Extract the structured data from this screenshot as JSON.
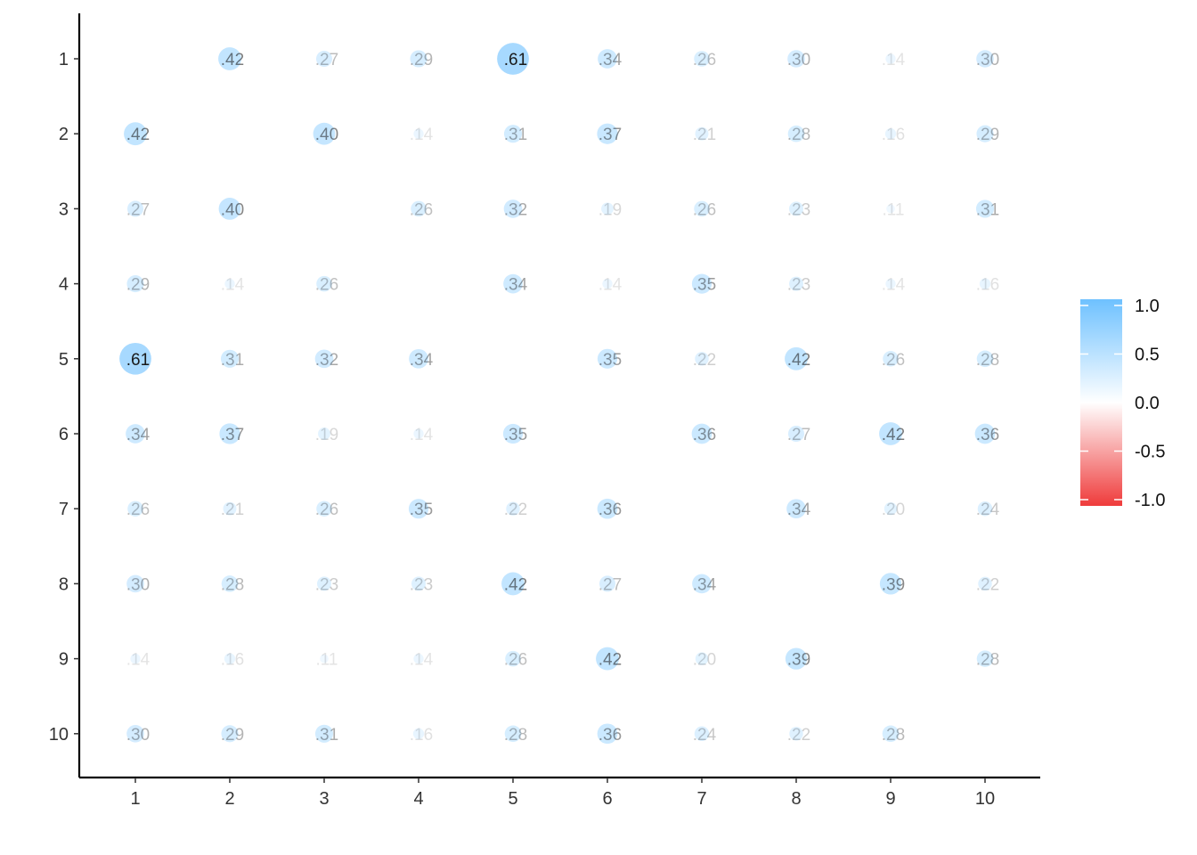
{
  "chart_data": {
    "type": "heatmap",
    "subtype": "correlation-bubble-matrix",
    "title": "",
    "xlabel": "",
    "ylabel": "",
    "x_categories": [
      "1",
      "2",
      "3",
      "4",
      "5",
      "6",
      "7",
      "8",
      "9",
      "10"
    ],
    "y_categories": [
      "1",
      "2",
      "3",
      "4",
      "5",
      "6",
      "7",
      "8",
      "9",
      "10"
    ],
    "diagonal_blank": true,
    "values": [
      [
        null,
        0.42,
        0.27,
        0.29,
        0.61,
        0.34,
        0.26,
        0.3,
        0.14,
        0.3
      ],
      [
        0.42,
        null,
        0.4,
        0.14,
        0.31,
        0.37,
        0.21,
        0.28,
        0.16,
        0.29
      ],
      [
        0.27,
        0.4,
        null,
        0.26,
        0.32,
        0.19,
        0.26,
        0.23,
        0.11,
        0.31
      ],
      [
        0.29,
        0.14,
        0.26,
        null,
        0.34,
        0.14,
        0.35,
        0.23,
        0.14,
        0.16
      ],
      [
        0.61,
        0.31,
        0.32,
        0.34,
        null,
        0.35,
        0.22,
        0.42,
        0.26,
        0.28
      ],
      [
        0.34,
        0.37,
        0.19,
        0.14,
        0.35,
        null,
        0.36,
        0.27,
        0.42,
        0.36
      ],
      [
        0.26,
        0.21,
        0.26,
        0.35,
        0.22,
        0.36,
        null,
        0.34,
        0.2,
        0.24
      ],
      [
        0.3,
        0.28,
        0.23,
        0.23,
        0.42,
        0.27,
        0.34,
        null,
        0.39,
        0.22
      ],
      [
        0.14,
        0.16,
        0.11,
        0.14,
        0.26,
        0.42,
        0.2,
        0.39,
        null,
        0.28
      ],
      [
        0.3,
        0.29,
        0.31,
        0.16,
        0.28,
        0.36,
        0.24,
        0.22,
        0.28,
        null
      ]
    ],
    "color_scale": {
      "domain": [
        -1.0,
        0.0,
        1.0
      ],
      "colors": [
        "#ef3b3b",
        "#ffffff",
        "#6ec1ff"
      ],
      "ticks": [
        1.0,
        0.5,
        0.0,
        -0.5,
        -1.0
      ],
      "tick_labels": [
        "1.0",
        "0.5",
        "0.0",
        "-0.5",
        "-1.0"
      ]
    },
    "grid": false,
    "legend": "right",
    "label_color": "#1a1a1a"
  }
}
